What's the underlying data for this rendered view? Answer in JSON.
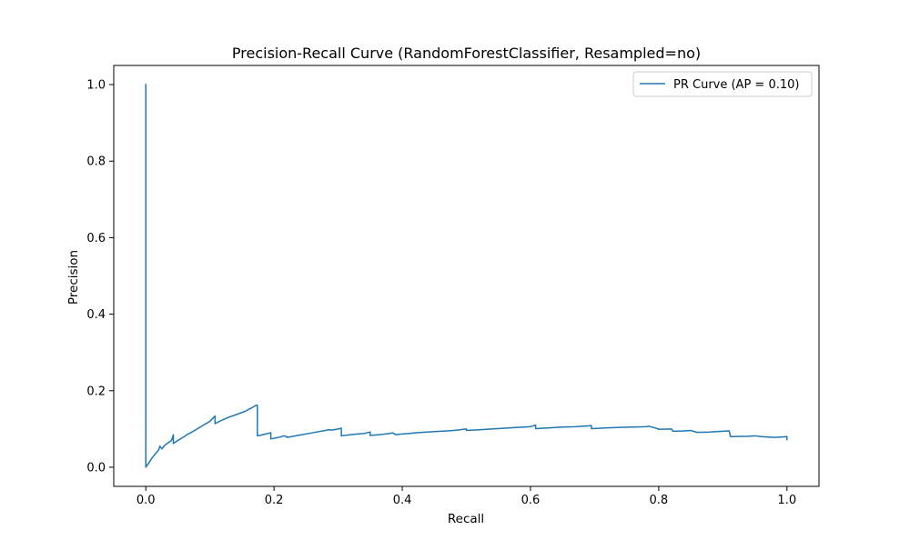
{
  "chart_data": {
    "type": "line",
    "title": "Precision-Recall Curve (RandomForestClassifier, Resampled=no)",
    "xlabel": "Recall",
    "ylabel": "Precision",
    "xlim": [
      -0.05,
      1.05
    ],
    "ylim": [
      -0.05,
      1.05
    ],
    "xticks": [
      0.0,
      0.2,
      0.4,
      0.6,
      0.8,
      1.0
    ],
    "xtick_labels": [
      "0.0",
      "0.2",
      "0.4",
      "0.6",
      "0.8",
      "1.0"
    ],
    "yticks": [
      0.0,
      0.2,
      0.4,
      0.6,
      0.8,
      1.0
    ],
    "ytick_labels": [
      "0.0",
      "0.2",
      "0.4",
      "0.6",
      "0.8",
      "1.0"
    ],
    "grid": false,
    "legend_position": "top-right",
    "series": [
      {
        "name": "PR Curve (AP = 0.10)",
        "color": "#1f77b4",
        "x": [
          0.0,
          0.0,
          0.0,
          0.005,
          0.01,
          0.015,
          0.02,
          0.022,
          0.025,
          0.03,
          0.04,
          0.043,
          0.043,
          0.05,
          0.06,
          0.065,
          0.07,
          0.08,
          0.09,
          0.1,
          0.108,
          0.108,
          0.12,
          0.13,
          0.14,
          0.15,
          0.155,
          0.16,
          0.165,
          0.172,
          0.174,
          0.174,
          0.18,
          0.19,
          0.195,
          0.195,
          0.21,
          0.215,
          0.22,
          0.22,
          0.24,
          0.26,
          0.28,
          0.285,
          0.29,
          0.3,
          0.305,
          0.305,
          0.32,
          0.33,
          0.34,
          0.345,
          0.35,
          0.35,
          0.37,
          0.38,
          0.385,
          0.39,
          0.395,
          0.4,
          0.41,
          0.42,
          0.43,
          0.44,
          0.45,
          0.46,
          0.47,
          0.48,
          0.49,
          0.5,
          0.5,
          0.52,
          0.54,
          0.56,
          0.58,
          0.6,
          0.608,
          0.608,
          0.63,
          0.65,
          0.67,
          0.69,
          0.695,
          0.695,
          0.72,
          0.74,
          0.76,
          0.78,
          0.785,
          0.8,
          0.8,
          0.82,
          0.822,
          0.84,
          0.85,
          0.86,
          0.88,
          0.89,
          0.9,
          0.91,
          0.912,
          0.94,
          0.95,
          0.96,
          0.97,
          0.98,
          0.99,
          1.0,
          1.0
        ],
        "y": [
          1.0,
          0.0,
          0.0,
          0.012,
          0.025,
          0.035,
          0.045,
          0.055,
          0.048,
          0.058,
          0.07,
          0.085,
          0.062,
          0.07,
          0.08,
          0.086,
          0.09,
          0.1,
          0.11,
          0.12,
          0.134,
          0.114,
          0.124,
          0.131,
          0.137,
          0.143,
          0.146,
          0.151,
          0.155,
          0.162,
          0.162,
          0.082,
          0.084,
          0.088,
          0.09,
          0.074,
          0.079,
          0.082,
          0.08,
          0.078,
          0.084,
          0.09,
          0.096,
          0.098,
          0.097,
          0.1,
          0.102,
          0.082,
          0.085,
          0.087,
          0.088,
          0.09,
          0.092,
          0.083,
          0.086,
          0.088,
          0.09,
          0.085,
          0.086,
          0.087,
          0.088,
          0.09,
          0.091,
          0.092,
          0.093,
          0.094,
          0.095,
          0.096,
          0.098,
          0.1,
          0.096,
          0.098,
          0.1,
          0.102,
          0.104,
          0.106,
          0.11,
          0.101,
          0.103,
          0.105,
          0.106,
          0.108,
          0.109,
          0.101,
          0.103,
          0.104,
          0.105,
          0.106,
          0.107,
          0.1,
          0.099,
          0.1,
          0.094,
          0.095,
          0.096,
          0.091,
          0.092,
          0.093,
          0.094,
          0.095,
          0.08,
          0.081,
          0.082,
          0.08,
          0.079,
          0.078,
          0.079,
          0.08,
          0.072
        ]
      }
    ]
  }
}
